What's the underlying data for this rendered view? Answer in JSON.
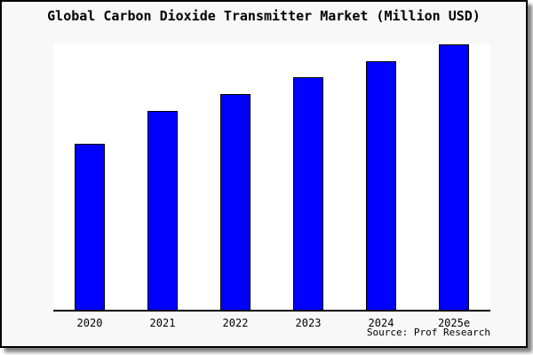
{
  "frame": {
    "background": "#F8F8F8",
    "border_color": "#000000",
    "shadow_color": "#7F7F7F"
  },
  "chart_data": {
    "type": "bar",
    "title": "Global Carbon Dioxide Transmitter Market (Million USD)",
    "categories": [
      "2020",
      "2021",
      "2022",
      "2023",
      "2024",
      "2025e"
    ],
    "values": [
      62.7,
      74.9,
      81.4,
      87.5,
      93.6,
      100
    ],
    "value_note": "No numeric y-axis is shown in the chart; values are bar heights estimated as percent of the tallest (2025e) bar",
    "xlabel": "",
    "ylabel": "",
    "ylim": [
      0,
      100
    ],
    "grid": false,
    "legend": false,
    "y_axis_visible": false,
    "plot_background": "#FFFFFF",
    "axis_color": "#000000",
    "bar_fill": "#0000FF",
    "bar_border": "#000000"
  },
  "source": {
    "text": "Source: Prof Research"
  }
}
